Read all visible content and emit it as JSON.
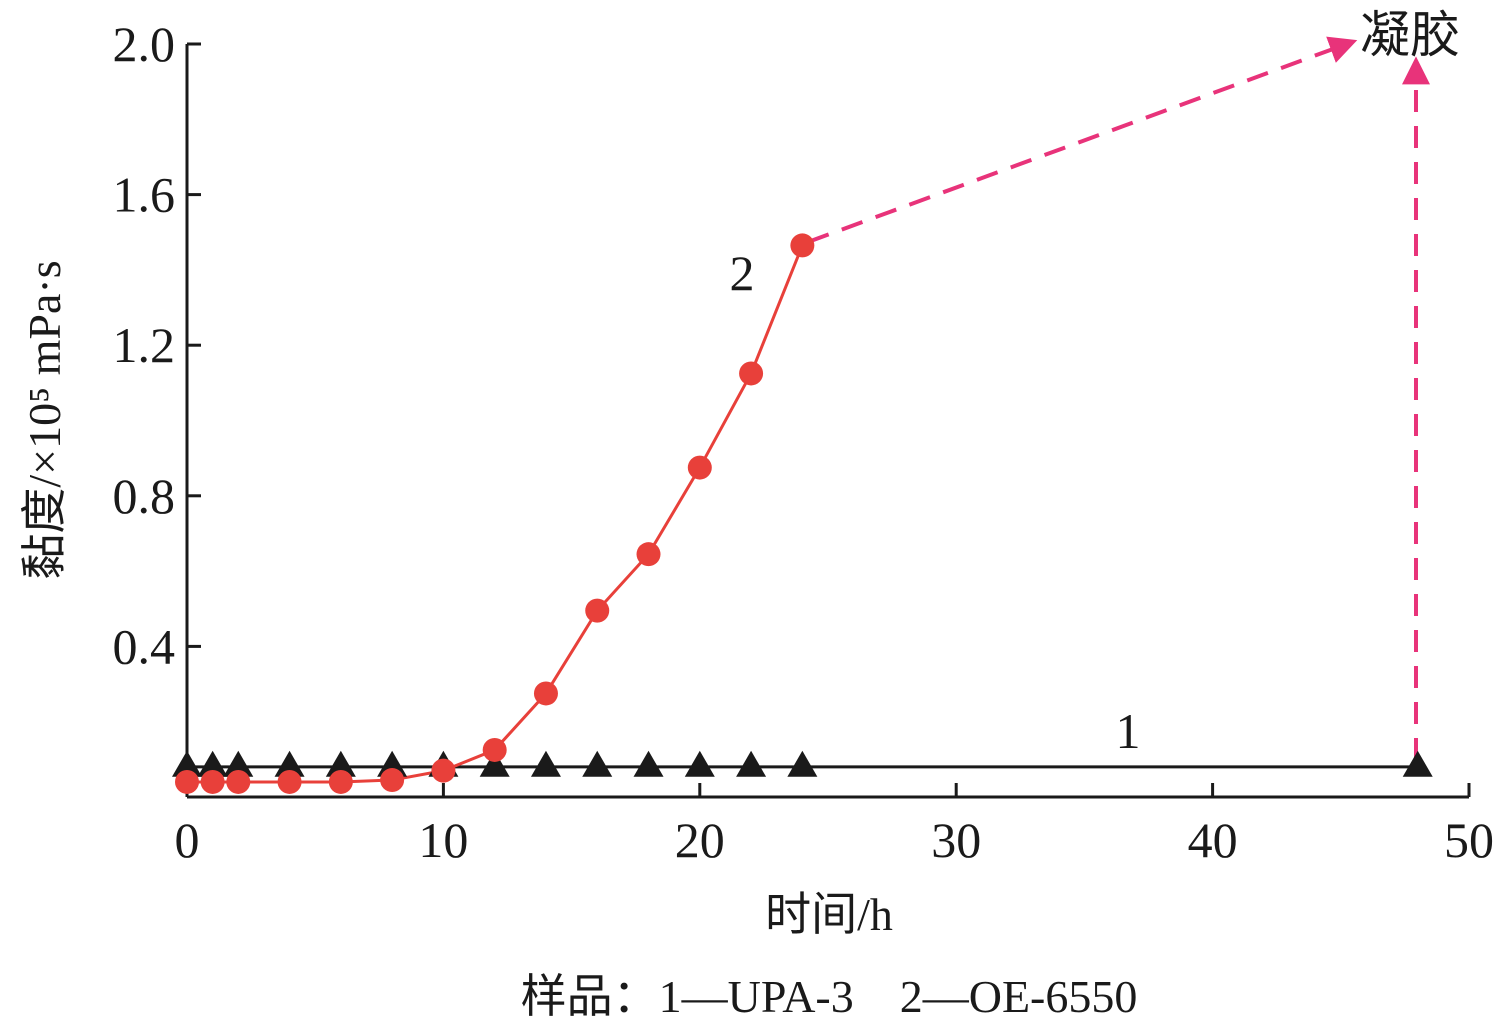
{
  "chart_data": {
    "type": "line",
    "xlabel": "时间/h",
    "ylabel": "黏度/×10⁵ mPa·s",
    "xlim": [
      0,
      50
    ],
    "ylim": [
      0,
      2.0
    ],
    "xticks": [
      "0",
      "10",
      "20",
      "30",
      "40",
      "50"
    ],
    "yticks": [
      "0.4",
      "0.8",
      "1.2",
      "1.6",
      "2.0"
    ],
    "grid": false,
    "series": [
      {
        "name": "1",
        "marker": "triangle",
        "color": "#1a1a1a",
        "x": [
          0,
          1,
          2,
          4,
          6,
          8,
          10,
          12,
          14,
          16,
          18,
          20,
          22,
          24,
          48
        ],
        "y": [
          0.08,
          0.08,
          0.08,
          0.08,
          0.08,
          0.08,
          0.08,
          0.08,
          0.08,
          0.08,
          0.08,
          0.08,
          0.08,
          0.08,
          0.08
        ]
      },
      {
        "name": "2",
        "marker": "circle",
        "color": "#e8403a",
        "x": [
          0,
          1,
          2,
          4,
          6,
          8,
          10,
          12,
          14,
          16,
          18,
          20,
          22,
          24
        ],
        "y": [
          0.04,
          0.04,
          0.04,
          0.04,
          0.04,
          0.045,
          0.07,
          0.125,
          0.275,
          0.495,
          0.645,
          0.875,
          1.125,
          1.465
        ]
      }
    ],
    "annotations": {
      "gel_label": "凝胶",
      "gel_color": "#e8337a"
    },
    "caption": "样品：1—UPA-3　2—OE-6550"
  }
}
